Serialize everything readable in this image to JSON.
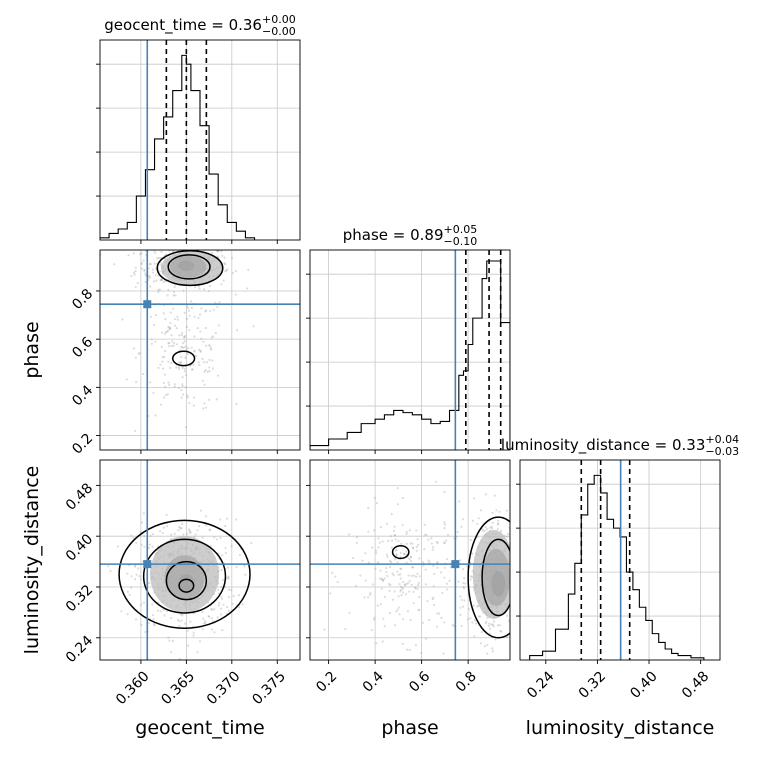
{
  "chart_data": {
    "type": "corner",
    "parameters": [
      "geocent_time",
      "phase",
      "luminosity_distance"
    ],
    "truth_color": "#4682b4",
    "truths": {
      "geocent_time": 0.3607,
      "phase": 0.745,
      "luminosity_distance": 0.356
    },
    "axis_labels": {
      "geocent_time": "geocent_time",
      "phase": "phase",
      "luminosity_distance": "luminosity_distance"
    },
    "panels": [
      {
        "id": "geocent_time-hist",
        "type": "histogram",
        "param": "geocent_time",
        "title": {
          "name": "geocent_time",
          "value": "0.36",
          "plus": "+0.00",
          "minus": "−0.00"
        },
        "xlim": [
          0.3555,
          0.3775
        ],
        "ylim": [
          0,
          0.00455
        ],
        "quantiles": [
          0.3628,
          0.365,
          0.3672
        ],
        "bins": [
          [
            0.3555,
            0.3565,
            5e-05
          ],
          [
            0.3565,
            0.3575,
            0.00015
          ],
          [
            0.3575,
            0.3585,
            0.00025
          ],
          [
            0.3585,
            0.3595,
            0.0004
          ],
          [
            0.3595,
            0.3605,
            0.001
          ],
          [
            0.3605,
            0.3615,
            0.0016
          ],
          [
            0.3615,
            0.3625,
            0.0023
          ],
          [
            0.3625,
            0.3635,
            0.0028
          ],
          [
            0.3635,
            0.3645,
            0.0034
          ],
          [
            0.3645,
            0.365,
            0.0042
          ],
          [
            0.365,
            0.3655,
            0.004
          ],
          [
            0.3655,
            0.3665,
            0.0034
          ],
          [
            0.3665,
            0.3675,
            0.0026
          ],
          [
            0.3675,
            0.3685,
            0.0015
          ],
          [
            0.3685,
            0.3695,
            0.0008
          ],
          [
            0.3695,
            0.3705,
            0.0004
          ],
          [
            0.3705,
            0.3715,
            0.0002
          ],
          [
            0.3715,
            0.3725,
            5e-05
          ]
        ]
      },
      {
        "id": "phase-hist",
        "type": "histogram",
        "param": "phase",
        "title": {
          "name": "phase",
          "value": "0.89",
          "plus": "+0.05",
          "minus": "−0.10"
        },
        "xlim": [
          0.12,
          0.98
        ],
        "ylim": [
          0,
          0.00455
        ],
        "quantiles": [
          0.79,
          0.89,
          0.94
        ],
        "bins": [
          [
            0.12,
            0.2,
            0.0001
          ],
          [
            0.2,
            0.28,
            0.00025
          ],
          [
            0.28,
            0.34,
            0.0004
          ],
          [
            0.34,
            0.4,
            0.0006
          ],
          [
            0.4,
            0.44,
            0.0007
          ],
          [
            0.44,
            0.48,
            0.0008
          ],
          [
            0.48,
            0.52,
            0.0009
          ],
          [
            0.52,
            0.56,
            0.00085
          ],
          [
            0.56,
            0.6,
            0.0008
          ],
          [
            0.6,
            0.64,
            0.0007
          ],
          [
            0.64,
            0.68,
            0.0006
          ],
          [
            0.68,
            0.72,
            0.00065
          ],
          [
            0.72,
            0.76,
            0.0009
          ],
          [
            0.76,
            0.78,
            0.0017
          ],
          [
            0.78,
            0.8,
            0.0018
          ],
          [
            0.8,
            0.82,
            0.0024
          ],
          [
            0.82,
            0.86,
            0.003
          ],
          [
            0.86,
            0.88,
            0.0039
          ],
          [
            0.88,
            0.92,
            0.0043
          ],
          [
            0.92,
            0.94,
            0.0043
          ],
          [
            0.94,
            0.96,
            0.0029
          ],
          [
            0.96,
            0.98,
            0.0029
          ]
        ]
      },
      {
        "id": "luminosity_distance-hist",
        "type": "histogram",
        "param": "luminosity_distance",
        "title": {
          "name": "luminosity_distance",
          "value": "0.33",
          "plus": "+0.04",
          "minus": "−0.03"
        },
        "xlim": [
          0.2,
          0.51
        ],
        "ylim": [
          0,
          0.00455
        ],
        "quantiles": [
          0.295,
          0.325,
          0.37
        ],
        "bins": [
          [
            0.215,
            0.235,
            0.0001
          ],
          [
            0.235,
            0.255,
            0.0002
          ],
          [
            0.255,
            0.275,
            0.0007
          ],
          [
            0.275,
            0.285,
            0.0015
          ],
          [
            0.285,
            0.295,
            0.0022
          ],
          [
            0.295,
            0.305,
            0.0033
          ],
          [
            0.305,
            0.315,
            0.004
          ],
          [
            0.315,
            0.325,
            0.0042
          ],
          [
            0.325,
            0.335,
            0.0038
          ],
          [
            0.335,
            0.345,
            0.0032
          ],
          [
            0.345,
            0.355,
            0.003
          ],
          [
            0.355,
            0.365,
            0.0028
          ],
          [
            0.365,
            0.375,
            0.002
          ],
          [
            0.375,
            0.385,
            0.0016
          ],
          [
            0.385,
            0.395,
            0.0012
          ],
          [
            0.395,
            0.405,
            0.0009
          ],
          [
            0.405,
            0.415,
            0.0006
          ],
          [
            0.415,
            0.425,
            0.0004
          ],
          [
            0.425,
            0.435,
            0.00025
          ],
          [
            0.435,
            0.445,
            0.00015
          ],
          [
            0.445,
            0.465,
            0.0001
          ],
          [
            0.465,
            0.485,
            5e-05
          ]
        ]
      },
      {
        "id": "phase-vs-geocent_time",
        "type": "scatter2d",
        "x": "geocent_time",
        "y": "phase",
        "xlim": [
          0.3555,
          0.3775
        ],
        "ylim": [
          0.14,
          0.97
        ],
        "clusters": [
          {
            "cx": 0.3646,
            "cy": 0.9,
            "sx": 0.0026,
            "sy": 0.045,
            "n": 340
          },
          {
            "cx": 0.3648,
            "cy": 0.55,
            "sx": 0.0024,
            "sy": 0.13,
            "n": 200
          }
        ],
        "blobs": [
          {
            "cx": 0.365,
            "cy": 0.905,
            "rx": 0.0009,
            "ry": 0.022,
            "level": 0.95
          },
          {
            "cx": 0.3652,
            "cy": 0.9,
            "rx": 0.002,
            "ry": 0.045,
            "level": 0.55
          },
          {
            "cx": 0.3656,
            "cy": 0.895,
            "rx": 0.0034,
            "ry": 0.07,
            "level": 0.2
          }
        ],
        "contours": [
          {
            "cx": 0.3654,
            "cy": 0.895,
            "rx": 0.0036,
            "ry": 0.072
          },
          {
            "cx": 0.3653,
            "cy": 0.9,
            "rx": 0.0023,
            "ry": 0.05
          },
          {
            "cx": 0.3647,
            "cy": 0.52,
            "rx": 0.0012,
            "ry": 0.03
          }
        ]
      },
      {
        "id": "luminosity_distance-vs-geocent_time",
        "type": "scatter2d",
        "x": "geocent_time",
        "y": "luminosity_distance",
        "xlim": [
          0.3555,
          0.3775
        ],
        "ylim": [
          0.205,
          0.52
        ],
        "clusters": [
          {
            "cx": 0.3648,
            "cy": 0.335,
            "sx": 0.0028,
            "sy": 0.045,
            "n": 500
          }
        ],
        "blobs": [
          {
            "cx": 0.365,
            "cy": 0.325,
            "rx": 0.0009,
            "ry": 0.015,
            "level": 0.95
          },
          {
            "cx": 0.3648,
            "cy": 0.335,
            "rx": 0.0022,
            "ry": 0.035,
            "level": 0.55
          },
          {
            "cx": 0.3648,
            "cy": 0.34,
            "rx": 0.0038,
            "ry": 0.06,
            "level": 0.2
          }
        ],
        "contours": [
          {
            "cx": 0.3648,
            "cy": 0.34,
            "rx": 0.0072,
            "ry": 0.085
          },
          {
            "cx": 0.3648,
            "cy": 0.337,
            "rx": 0.0045,
            "ry": 0.058
          },
          {
            "cx": 0.365,
            "cy": 0.33,
            "rx": 0.0022,
            "ry": 0.03
          },
          {
            "cx": 0.365,
            "cy": 0.322,
            "rx": 0.0008,
            "ry": 0.01
          }
        ]
      },
      {
        "id": "luminosity_distance-vs-phase",
        "type": "scatter2d",
        "x": "phase",
        "y": "luminosity_distance",
        "xlim": [
          0.12,
          0.98
        ],
        "ylim": [
          0.205,
          0.52
        ],
        "clusters": [
          {
            "cx": 0.55,
            "cy": 0.34,
            "sx": 0.13,
            "sy": 0.05,
            "n": 260
          },
          {
            "cx": 0.9,
            "cy": 0.335,
            "sx": 0.05,
            "sy": 0.05,
            "n": 380
          }
        ],
        "blobs": [
          {
            "cx": 0.93,
            "cy": 0.325,
            "rx": 0.03,
            "ry": 0.02,
            "level": 0.95
          },
          {
            "cx": 0.92,
            "cy": 0.335,
            "rx": 0.06,
            "ry": 0.045,
            "level": 0.55
          },
          {
            "cx": 0.91,
            "cy": 0.34,
            "rx": 0.09,
            "ry": 0.07,
            "level": 0.2
          }
        ],
        "contours": [
          {
            "cx": 0.93,
            "cy": 0.335,
            "rx": 0.13,
            "ry": 0.095
          },
          {
            "cx": 0.93,
            "cy": 0.335,
            "rx": 0.07,
            "ry": 0.06
          },
          {
            "cx": 0.51,
            "cy": 0.375,
            "rx": 0.035,
            "ry": 0.01
          }
        ]
      }
    ],
    "ticks": {
      "geocent_time": {
        "values": [
          0.36,
          0.365,
          0.37,
          0.375
        ],
        "labels": [
          "0.360",
          "0.365",
          "0.370",
          "0.375"
        ]
      },
      "phase_x": {
        "values": [
          0.2,
          0.4,
          0.6,
          0.8
        ],
        "labels": [
          "0.2",
          "0.4",
          "0.6",
          "0.8"
        ]
      },
      "phase_y": {
        "values": [
          0.2,
          0.4,
          0.6,
          0.8
        ],
        "labels": [
          "0.2",
          "0.4",
          "0.6",
          "0.8"
        ]
      },
      "luminosity_distance": {
        "values": [
          0.24,
          0.32,
          0.4,
          0.48
        ],
        "labels": [
          "0.24",
          "0.32",
          "0.40",
          "0.48"
        ]
      }
    }
  }
}
